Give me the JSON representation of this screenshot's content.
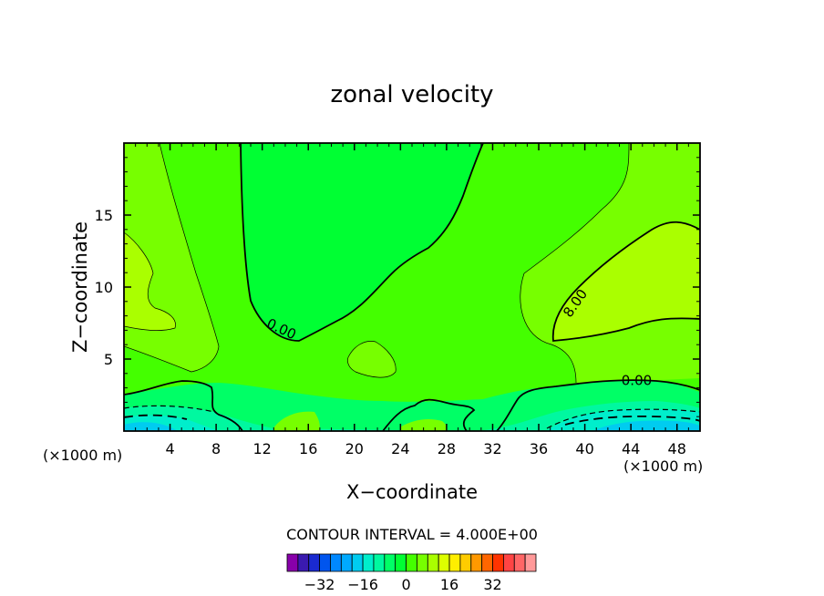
{
  "chart_data": {
    "type": "heatmap",
    "title": "zonal velocity",
    "xlabel": "X−coordinate",
    "ylabel": "Z−coordinate",
    "x_unit_left": "(×1000 m)",
    "x_unit_right": "(×1000 m)",
    "xlim": [
      0,
      50
    ],
    "ylim": [
      0,
      20
    ],
    "x_ticks": [
      "4",
      "8",
      "12",
      "16",
      "20",
      "24",
      "28",
      "32",
      "36",
      "40",
      "44",
      "48"
    ],
    "x_tick_values": [
      4,
      8,
      12,
      16,
      20,
      24,
      28,
      32,
      36,
      40,
      44,
      48
    ],
    "y_ticks": [
      "5",
      "10",
      "15"
    ],
    "y_tick_values": [
      5,
      10,
      15
    ],
    "contour_labels": [
      {
        "text": "0.00",
        "x": 13.5,
        "y": 6.8
      },
      {
        "text": "8.00",
        "x": 39.5,
        "y": 8.7
      },
      {
        "text": "0.00",
        "x": 44.5,
        "y": 3.2
      }
    ],
    "contour_interval_text": "CONTOUR INTERVAL = 4.000E+00",
    "colorbar": {
      "colors": [
        "#8800aa",
        "#3a1ab0",
        "#1a2ad0",
        "#0055ee",
        "#0088ff",
        "#00aaff",
        "#00ccf0",
        "#00eecc",
        "#00f8a0",
        "#00ff66",
        "#00ff33",
        "#44ff00",
        "#77ff00",
        "#aaff00",
        "#ddff00",
        "#ffee00",
        "#ffcc00",
        "#ff9900",
        "#ff6600",
        "#ff3300",
        "#ff4444",
        "#ff6666",
        "#ff9999"
      ],
      "tick_labels": [
        "−32",
        "−16",
        "0",
        "16",
        "32"
      ],
      "tick_values": [
        -32,
        -16,
        0,
        16,
        32
      ]
    }
  }
}
